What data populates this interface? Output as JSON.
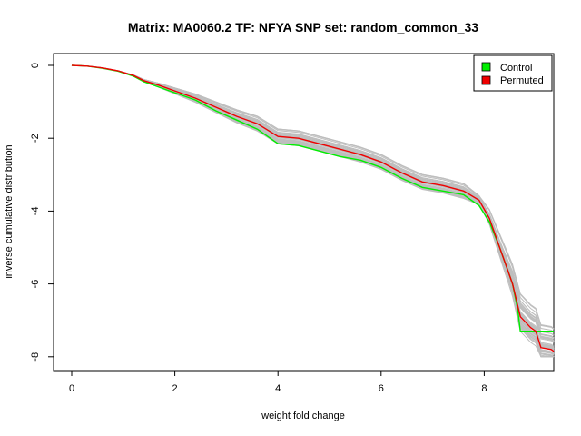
{
  "chart_data": {
    "type": "line",
    "title": "Matrix: MA0060.2 TF: NFYA SNP set: random_common_33",
    "xlabel": "weight fold change",
    "ylabel": "inverse cumulative distribution",
    "xlim": [
      0,
      9.4
    ],
    "ylim": [
      -8,
      0
    ],
    "xticks": [
      0,
      2,
      4,
      6,
      8
    ],
    "yticks": [
      0,
      -2,
      -4,
      -6,
      -8
    ],
    "xtick_labels": [
      "0",
      "2",
      "4",
      "6",
      "8"
    ],
    "ytick_labels": [
      "0",
      "-2",
      "-4",
      "-6",
      "-8"
    ],
    "legend": {
      "position": "top-right",
      "entries": [
        {
          "label": "Control",
          "color": "#00ee00"
        },
        {
          "label": "Permuted",
          "color": "#ee0000"
        }
      ]
    },
    "background_color": "#bebebe",
    "series": [
      {
        "name": "Control",
        "color": "#00ee00",
        "x": [
          0,
          0.3,
          0.6,
          0.9,
          1.2,
          1.4,
          1.7,
          2.0,
          2.4,
          2.8,
          3.2,
          3.6,
          4.0,
          4.4,
          4.8,
          5.2,
          5.6,
          6.0,
          6.4,
          6.8,
          7.2,
          7.6,
          7.9,
          8.1,
          8.3,
          8.45,
          8.55,
          8.65,
          8.7,
          9.4
        ],
        "y": [
          0,
          -0.02,
          -0.08,
          -0.16,
          -0.3,
          -0.45,
          -0.6,
          -0.75,
          -0.95,
          -1.25,
          -1.5,
          -1.75,
          -2.15,
          -2.2,
          -2.35,
          -2.5,
          -2.6,
          -2.8,
          -3.1,
          -3.35,
          -3.45,
          -3.55,
          -3.85,
          -4.3,
          -5.0,
          -5.6,
          -6.0,
          -6.7,
          -7.3,
          -7.3
        ]
      },
      {
        "name": "Permuted",
        "color": "#ee0000",
        "x": [
          0,
          0.3,
          0.6,
          0.9,
          1.2,
          1.4,
          1.7,
          2.0,
          2.4,
          2.8,
          3.2,
          3.6,
          4.0,
          4.4,
          4.8,
          5.2,
          5.6,
          6.0,
          6.4,
          6.8,
          7.2,
          7.6,
          7.9,
          8.1,
          8.3,
          8.45,
          8.55,
          8.7,
          8.9,
          9.0,
          9.1,
          9.3,
          9.4
        ],
        "y": [
          0,
          -0.02,
          -0.07,
          -0.15,
          -0.28,
          -0.42,
          -0.55,
          -0.7,
          -0.9,
          -1.15,
          -1.4,
          -1.6,
          -1.95,
          -2.0,
          -2.15,
          -2.3,
          -2.45,
          -2.65,
          -2.95,
          -3.2,
          -3.3,
          -3.45,
          -3.7,
          -4.2,
          -5.0,
          -5.6,
          -6.0,
          -6.9,
          -7.2,
          -7.3,
          -7.75,
          -7.8,
          -7.85
        ]
      }
    ]
  }
}
